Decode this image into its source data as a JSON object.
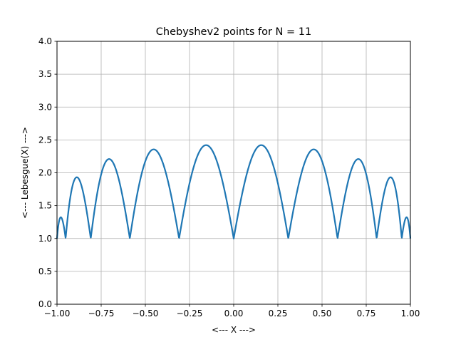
{
  "chart_data": {
    "type": "line",
    "title": "Chebyshev2 points for N = 11",
    "xlabel": "<--- X --->",
    "ylabel": "<--- Lebesgue(X) --->",
    "xlim": [
      -1.0,
      1.0
    ],
    "ylim": [
      0.0,
      4.0
    ],
    "xticks": [
      -1.0,
      -0.75,
      -0.5,
      -0.25,
      0.0,
      0.25,
      0.5,
      0.75,
      1.0
    ],
    "xtick_labels": [
      "−1.00",
      "−0.75",
      "−0.50",
      "−0.25",
      "0.00",
      "0.25",
      "0.50",
      "0.75",
      "1.00"
    ],
    "yticks": [
      0.0,
      0.5,
      1.0,
      1.5,
      2.0,
      2.5,
      3.0,
      3.5,
      4.0
    ],
    "ytick_labels": [
      "0.0",
      "0.5",
      "1.0",
      "1.5",
      "2.0",
      "2.5",
      "3.0",
      "3.5",
      "4.0"
    ],
    "grid": true,
    "nodes": [
      -1.0,
      -0.9511,
      -0.809,
      -0.5878,
      -0.309,
      0.0,
      0.309,
      0.5878,
      0.809,
      0.9511,
      1.0
    ],
    "series": [
      {
        "color": "#1f77b4",
        "x": [
          -1.0,
          -0.98,
          -0.9511,
          -0.89,
          -0.809,
          -0.7,
          -0.5878,
          -0.45,
          -0.309,
          -0.15,
          0.0,
          0.15,
          0.309,
          0.45,
          0.5878,
          0.7,
          0.809,
          0.89,
          0.9511,
          0.98,
          1.0
        ],
        "y": [
          1.0,
          1.33,
          1.0,
          1.93,
          1.0,
          2.21,
          1.0,
          2.36,
          1.0,
          2.42,
          1.0,
          2.42,
          1.0,
          2.36,
          1.0,
          2.21,
          1.0,
          1.93,
          1.0,
          1.33,
          1.0
        ]
      }
    ]
  }
}
